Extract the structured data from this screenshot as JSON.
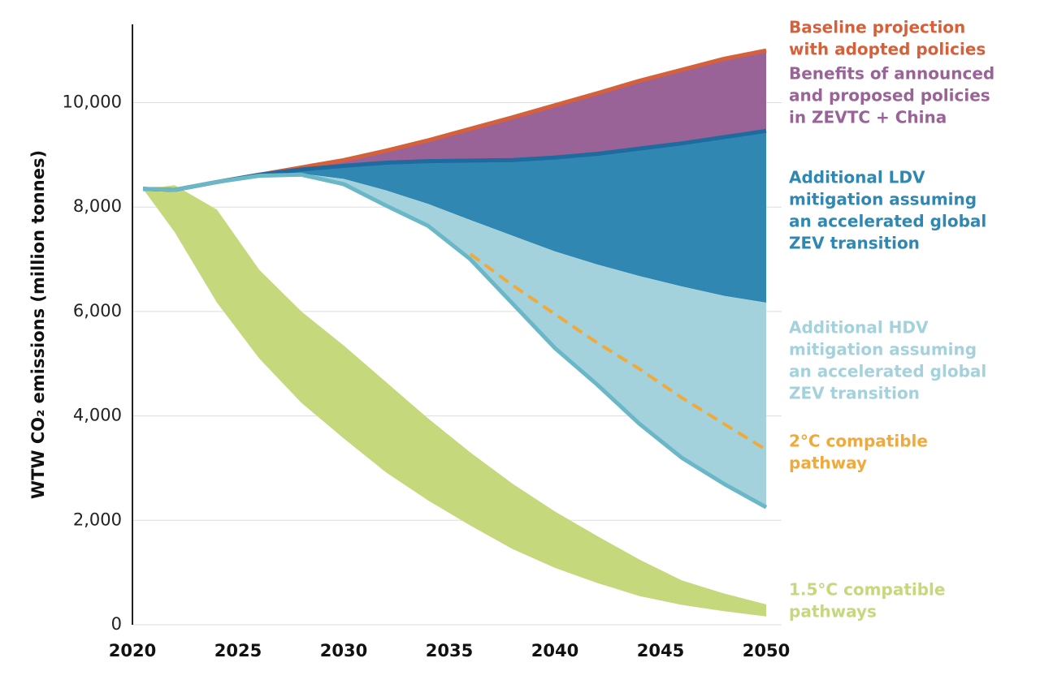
{
  "chart_data": {
    "type": "band",
    "y_label": "WTW CO₂ emissions (million tonnes)",
    "xlim": [
      2020,
      2050
    ],
    "xticks": [
      2020,
      2025,
      2030,
      2035,
      2040,
      2045,
      2050
    ],
    "ylim": [
      0,
      11500
    ],
    "yticks": [
      0,
      {
        "value": 2000,
        "label": "2,000"
      },
      {
        "value": 4000,
        "label": "4,000"
      },
      {
        "value": 6000,
        "label": "6,000"
      },
      {
        "value": 8000,
        "label": "8,000"
      },
      {
        "value": 10000,
        "label": "10,000"
      }
    ],
    "grid": true,
    "x": [
      2020.5,
      2022,
      2024,
      2026,
      2028,
      2030,
      2032,
      2034,
      2036,
      2038,
      2040,
      2042,
      2044,
      2046,
      2048,
      2050
    ],
    "series": [
      {
        "name": [
          "Baseline projection",
          "with adopted policies"
        ],
        "color": "#d6603a",
        "style": "line",
        "values": [
          8350,
          8330,
          8480,
          8620,
          8760,
          8900,
          9080,
          9280,
          9500,
          9720,
          9950,
          10180,
          10420,
          10630,
          10840,
          11000
        ]
      },
      {
        "name": [
          "Benefits of announced",
          "and proposed policies",
          "in ZEVTC + China"
        ],
        "color": "#9a6398",
        "line": "#1d6b9f",
        "style": "band",
        "values": [
          8350,
          8330,
          8480,
          8620,
          8720,
          8790,
          8850,
          8880,
          8890,
          8900,
          8950,
          9020,
          9120,
          9220,
          9340,
          9460
        ]
      },
      {
        "name": [
          "Additional LDV",
          "mitigation assuming",
          "an accelerated global",
          "ZEV transition"
        ],
        "color": "#2f87b2",
        "style": "band",
        "values": [
          8350,
          8330,
          8480,
          8600,
          8640,
          8540,
          8320,
          8060,
          7750,
          7450,
          7150,
          6900,
          6680,
          6480,
          6300,
          6170
        ]
      },
      {
        "name": [
          "Additional HDV",
          "mitigation assuming",
          "an accelerated global",
          "ZEV transition"
        ],
        "color": "#a4d2dc",
        "line": "#6ab7c8",
        "style": "band",
        "values": [
          8350,
          8330,
          8480,
          8600,
          8620,
          8440,
          8030,
          7640,
          7000,
          6150,
          5300,
          4600,
          3850,
          3200,
          2700,
          2250
        ]
      },
      {
        "name": [
          "2°C compatible",
          "pathway"
        ],
        "color": "#f0aa3c",
        "style": "dashed",
        "values": [
          null,
          null,
          null,
          null,
          null,
          null,
          null,
          null,
          7100,
          6500,
          5950,
          5400,
          4900,
          4350,
          3850,
          3350
        ]
      },
      {
        "name": [
          "1.5°C compatible",
          "pathways"
        ],
        "color": "#c5d87c",
        "style": "range",
        "values": [
          8350,
          8420,
          7950,
          6800,
          6000,
          5350,
          4650,
          3950,
          3300,
          2700,
          2170,
          1700,
          1250,
          850,
          600,
          390
        ],
        "lower": [
          8350,
          7520,
          6170,
          5100,
          4250,
          3570,
          2920,
          2380,
          1900,
          1450,
          1090,
          800,
          550,
          380,
          260,
          160
        ]
      }
    ]
  }
}
